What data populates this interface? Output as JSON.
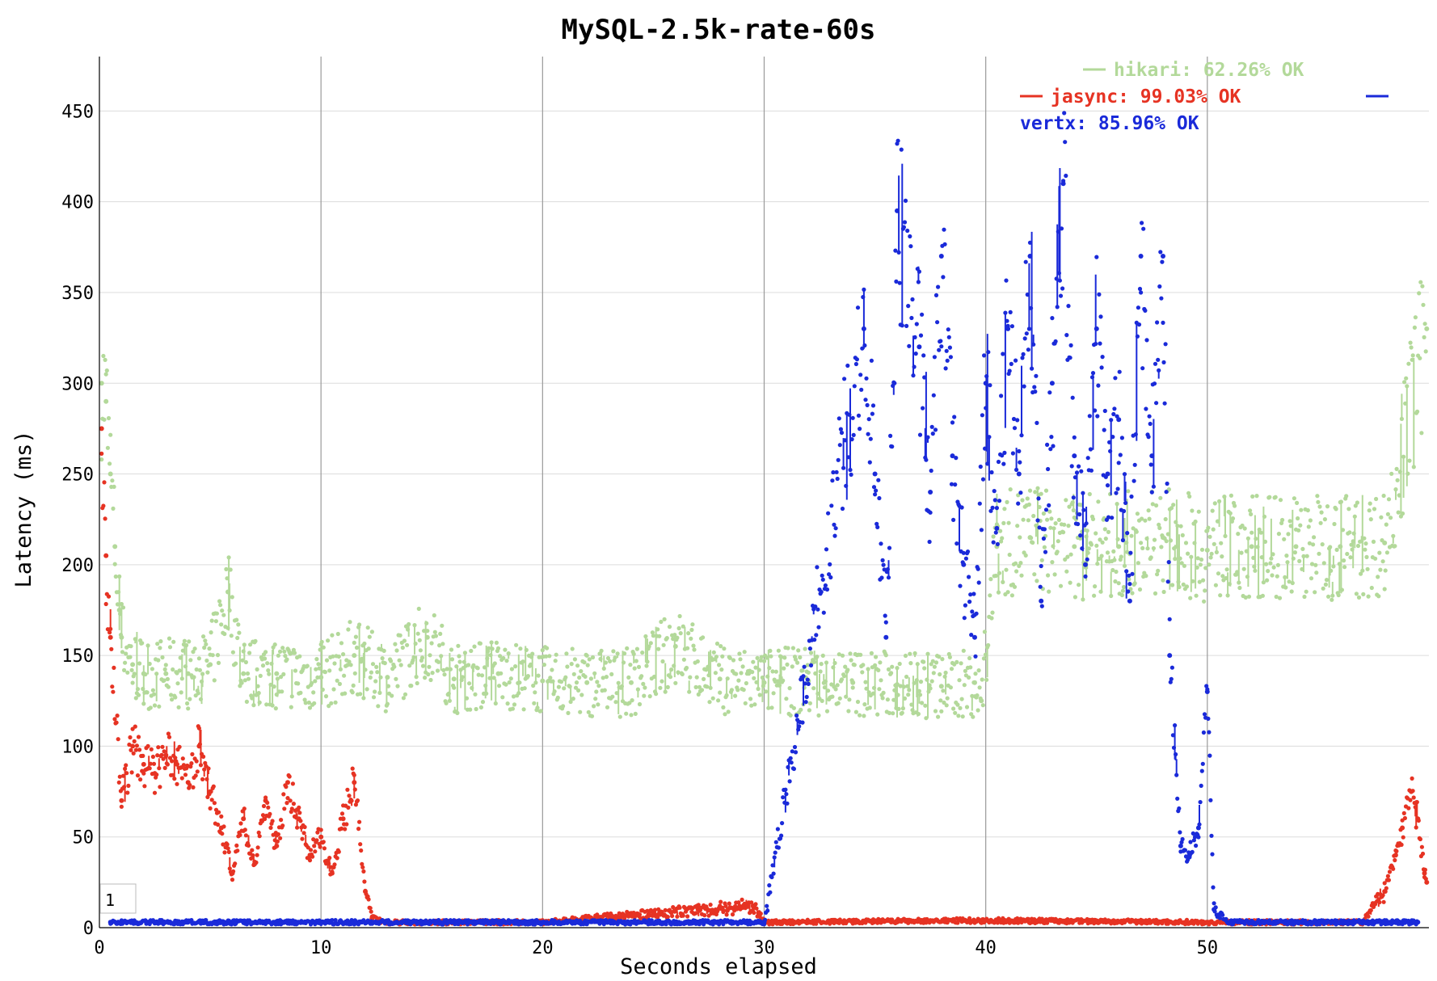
{
  "chart_data": {
    "type": "scatter",
    "title": "MySQL-2.5k-rate-60s",
    "xlabel": "Seconds elapsed",
    "ylabel": "Latency (ms)",
    "xlim": [
      0,
      60
    ],
    "ylim": [
      0,
      480
    ],
    "xticks": [
      0,
      10,
      20,
      30,
      40,
      50
    ],
    "yticks": [
      0,
      50,
      100,
      150,
      200,
      250,
      300,
      350,
      400,
      450
    ],
    "grid": true,
    "legend_position": "top-right",
    "corner_badge": "1",
    "series": [
      {
        "name": "hikari",
        "legend_label": "hikari: 62.26% OK",
        "color": "#b3d99a",
        "points": [
          [
            0.1,
            300
          ],
          [
            0.3,
            290
          ],
          [
            0.5,
            250
          ],
          [
            0.7,
            210
          ],
          [
            0.9,
            175
          ],
          [
            1.0,
            160
          ],
          [
            1.5,
            145
          ],
          [
            2,
            140
          ],
          [
            3,
            140
          ],
          [
            4,
            140
          ],
          [
            5,
            145
          ],
          [
            5.8,
            185
          ],
          [
            6.5,
            140
          ],
          [
            8,
            140
          ],
          [
            10,
            138
          ],
          [
            11.5,
            150
          ],
          [
            13,
            138
          ],
          [
            14.8,
            160
          ],
          [
            16,
            137
          ],
          [
            18,
            140
          ],
          [
            20,
            136
          ],
          [
            22,
            135
          ],
          [
            24,
            135
          ],
          [
            26,
            155
          ],
          [
            28,
            137
          ],
          [
            30,
            135
          ],
          [
            32,
            136
          ],
          [
            34,
            135
          ],
          [
            36,
            134
          ],
          [
            38,
            133
          ],
          [
            39.5,
            135
          ],
          [
            39.8,
            125
          ],
          [
            40.5,
            210
          ],
          [
            42,
            215
          ],
          [
            44,
            210
          ],
          [
            46,
            210
          ],
          [
            48,
            215
          ],
          [
            50,
            208
          ],
          [
            52,
            210
          ],
          [
            54,
            210
          ],
          [
            56,
            210
          ],
          [
            58,
            212
          ],
          [
            59.9,
            330
          ]
        ]
      },
      {
        "name": "jasync",
        "legend_label": "jasync: 99.03% OK",
        "color": "#e63323",
        "points": [
          [
            0.1,
            275
          ],
          [
            0.3,
            205
          ],
          [
            0.5,
            160
          ],
          [
            1,
            70
          ],
          [
            1.5,
            100
          ],
          [
            2,
            90
          ],
          [
            2.5,
            85
          ],
          [
            3,
            95
          ],
          [
            3.5,
            90
          ],
          [
            4,
            80
          ],
          [
            4.5,
            100
          ],
          [
            5,
            75
          ],
          [
            5.5,
            55
          ],
          [
            6,
            30
          ],
          [
            6.5,
            60
          ],
          [
            7,
            35
          ],
          [
            7.5,
            70
          ],
          [
            8,
            45
          ],
          [
            8.5,
            80
          ],
          [
            9,
            60
          ],
          [
            9.5,
            40
          ],
          [
            10,
            50
          ],
          [
            10.5,
            30
          ],
          [
            11,
            60
          ],
          [
            11.5,
            80
          ],
          [
            12,
            20
          ],
          [
            12.3,
            5
          ],
          [
            13,
            3
          ],
          [
            20,
            3
          ],
          [
            29.5,
            12
          ],
          [
            30,
            3
          ],
          [
            40,
            4
          ],
          [
            50,
            3
          ],
          [
            55,
            3
          ],
          [
            57,
            3
          ],
          [
            58,
            20
          ],
          [
            58.5,
            40
          ],
          [
            58.8,
            55
          ],
          [
            59.2,
            75
          ],
          [
            59.5,
            60
          ],
          [
            59.8,
            30
          ],
          [
            59.9,
            25
          ]
        ]
      },
      {
        "name": "vertx",
        "legend_label": "vertx: 85.96% OK",
        "color": "#1a2ad9",
        "points": [
          [
            0.5,
            3
          ],
          [
            10,
            3
          ],
          [
            20,
            3
          ],
          [
            30,
            3
          ],
          [
            34.5,
            330
          ],
          [
            35,
            250
          ],
          [
            35.5,
            160
          ],
          [
            36,
            395
          ],
          [
            37,
            320
          ],
          [
            37.5,
            240
          ],
          [
            38,
            370
          ],
          [
            38.5,
            260
          ],
          [
            39,
            200
          ],
          [
            39.5,
            160
          ],
          [
            40,
            300
          ],
          [
            40.5,
            220
          ],
          [
            41,
            330
          ],
          [
            41.5,
            250
          ],
          [
            42,
            370
          ],
          [
            42.5,
            180
          ],
          [
            43,
            300
          ],
          [
            43.5,
            410
          ],
          [
            44,
            260
          ],
          [
            44.5,
            200
          ],
          [
            45,
            330
          ],
          [
            45.5,
            250
          ],
          [
            46,
            280
          ],
          [
            46.5,
            180
          ],
          [
            47,
            370
          ],
          [
            47.5,
            260
          ],
          [
            48,
            370
          ],
          [
            48.3,
            150
          ],
          [
            48.8,
            45
          ],
          [
            49.2,
            40
          ],
          [
            49.6,
            55
          ],
          [
            50,
            130
          ],
          [
            50.3,
            10
          ],
          [
            51,
            3
          ],
          [
            55,
            3
          ],
          [
            59.5,
            3
          ]
        ]
      }
    ]
  }
}
